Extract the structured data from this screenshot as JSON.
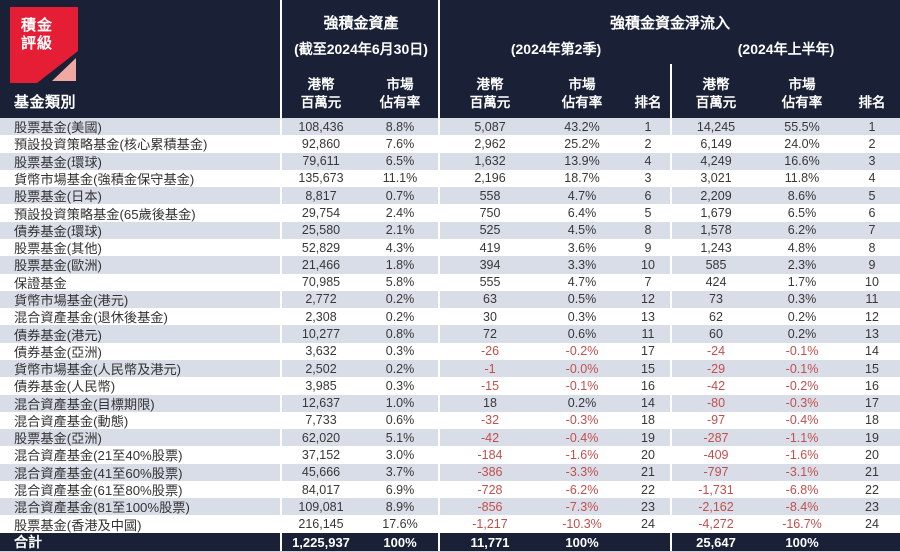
{
  "logo": {
    "line1": "積金",
    "line2": "評級",
    "red": "#e51e35",
    "pink": "#f0a9a0"
  },
  "colors": {
    "header_bg": "#1a2136",
    "stripe": "#d9dde8",
    "negative": "#c0504d",
    "text": "#383838"
  },
  "header": {
    "category_label": "基金類別",
    "assets_title": "強積金資產",
    "assets_subtitle": "(截至2024年6月30日)",
    "inflow_title": "強積金資金淨流入",
    "q2_subtitle": "(2024年第2季)",
    "h1_subtitle": "(2024年上半年)",
    "col_hkd_l1": "港幣",
    "col_hkd_l2": "百萬元",
    "col_share_l1": "市場",
    "col_share_l2": "佔有率",
    "col_rank": "排名"
  },
  "chart_data": {
    "type": "table",
    "title": "強積金資產及強積金資金淨流入",
    "columns": [
      "基金類別",
      "強積金資產(截至2024年6月30日) 港幣百萬元",
      "強積金資產(截至2024年6月30日) 市場佔有率",
      "強積金資金淨流入(2024年第2季) 港幣百萬元",
      "強積金資金淨流入(2024年第2季) 市場佔有率",
      "強積金資金淨流入(2024年第2季) 排名",
      "強積金資金淨流入(2024年上半年) 港幣百萬元",
      "強積金資金淨流入(2024年上半年) 市場佔有率",
      "強積金資金淨流入(2024年上半年) 排名"
    ],
    "rows": [
      [
        "股票基金(美國)",
        "108,436",
        "8.8%",
        "5,087",
        "43.2%",
        "1",
        "14,245",
        "55.5%",
        "1"
      ],
      [
        "預設投資策略基金(核心累積基金)",
        "92,860",
        "7.6%",
        "2,962",
        "25.2%",
        "2",
        "6,149",
        "24.0%",
        "2"
      ],
      [
        "股票基金(環球)",
        "79,611",
        "6.5%",
        "1,632",
        "13.9%",
        "4",
        "4,249",
        "16.6%",
        "3"
      ],
      [
        "貨幣市場基金(強積金保守基金)",
        "135,673",
        "11.1%",
        "2,196",
        "18.7%",
        "3",
        "3,021",
        "11.8%",
        "4"
      ],
      [
        "股票基金(日本)",
        "8,817",
        "0.7%",
        "558",
        "4.7%",
        "6",
        "2,209",
        "8.6%",
        "5"
      ],
      [
        "預設投資策略基金(65歲後基金)",
        "29,754",
        "2.4%",
        "750",
        "6.4%",
        "5",
        "1,679",
        "6.5%",
        "6"
      ],
      [
        "債券基金(環球)",
        "25,580",
        "2.1%",
        "525",
        "4.5%",
        "8",
        "1,578",
        "6.2%",
        "7"
      ],
      [
        "股票基金(其他)",
        "52,829",
        "4.3%",
        "419",
        "3.6%",
        "9",
        "1,243",
        "4.8%",
        "8"
      ],
      [
        "股票基金(歐洲)",
        "21,466",
        "1.8%",
        "394",
        "3.3%",
        "10",
        "585",
        "2.3%",
        "9"
      ],
      [
        "保證基金",
        "70,985",
        "5.8%",
        "555",
        "4.7%",
        "7",
        "424",
        "1.7%",
        "10"
      ],
      [
        "貨幣市場基金(港元)",
        "2,772",
        "0.2%",
        "63",
        "0.5%",
        "12",
        "73",
        "0.3%",
        "11"
      ],
      [
        "混合資產基金(退休後基金)",
        "2,308",
        "0.2%",
        "30",
        "0.3%",
        "13",
        "62",
        "0.2%",
        "12"
      ],
      [
        "債券基金(港元)",
        "10,277",
        "0.8%",
        "72",
        "0.6%",
        "11",
        "60",
        "0.2%",
        "13"
      ],
      [
        "債券基金(亞洲)",
        "3,632",
        "0.3%",
        "-26",
        "-0.2%",
        "17",
        "-24",
        "-0.1%",
        "14"
      ],
      [
        "貨幣市場基金(人民幣及港元)",
        "2,502",
        "0.2%",
        "-1",
        "-0.0%",
        "15",
        "-29",
        "-0.1%",
        "15"
      ],
      [
        "債券基金(人民幣)",
        "3,985",
        "0.3%",
        "-15",
        "-0.1%",
        "16",
        "-42",
        "-0.2%",
        "16"
      ],
      [
        "混合資產基金(目標期限)",
        "12,637",
        "1.0%",
        "18",
        "0.2%",
        "14",
        "-80",
        "-0.3%",
        "17"
      ],
      [
        "混合資產基金(動態)",
        "7,733",
        "0.6%",
        "-32",
        "-0.3%",
        "18",
        "-97",
        "-0.4%",
        "18"
      ],
      [
        "股票基金(亞洲)",
        "62,020",
        "5.1%",
        "-42",
        "-0.4%",
        "19",
        "-287",
        "-1.1%",
        "19"
      ],
      [
        "混合資產基金(21至40%股票)",
        "37,152",
        "3.0%",
        "-184",
        "-1.6%",
        "20",
        "-409",
        "-1.6%",
        "20"
      ],
      [
        "混合資產基金(41至60%股票)",
        "45,666",
        "3.7%",
        "-386",
        "-3.3%",
        "21",
        "-797",
        "-3.1%",
        "21"
      ],
      [
        "混合資產基金(61至80%股票)",
        "84,017",
        "6.9%",
        "-728",
        "-6.2%",
        "22",
        "-1,731",
        "-6.8%",
        "22"
      ],
      [
        "混合資產基金(81至100%股票)",
        "109,081",
        "8.9%",
        "-856",
        "-7.3%",
        "23",
        "-2,162",
        "-8.4%",
        "23"
      ],
      [
        "股票基金(香港及中國)",
        "216,145",
        "17.6%",
        "-1,217",
        "-10.3%",
        "24",
        "-4,272",
        "-16.7%",
        "24"
      ]
    ],
    "total": [
      "合計",
      "1,225,937",
      "100%",
      "11,771",
      "100%",
      "",
      "25,647",
      "100%",
      ""
    ]
  }
}
